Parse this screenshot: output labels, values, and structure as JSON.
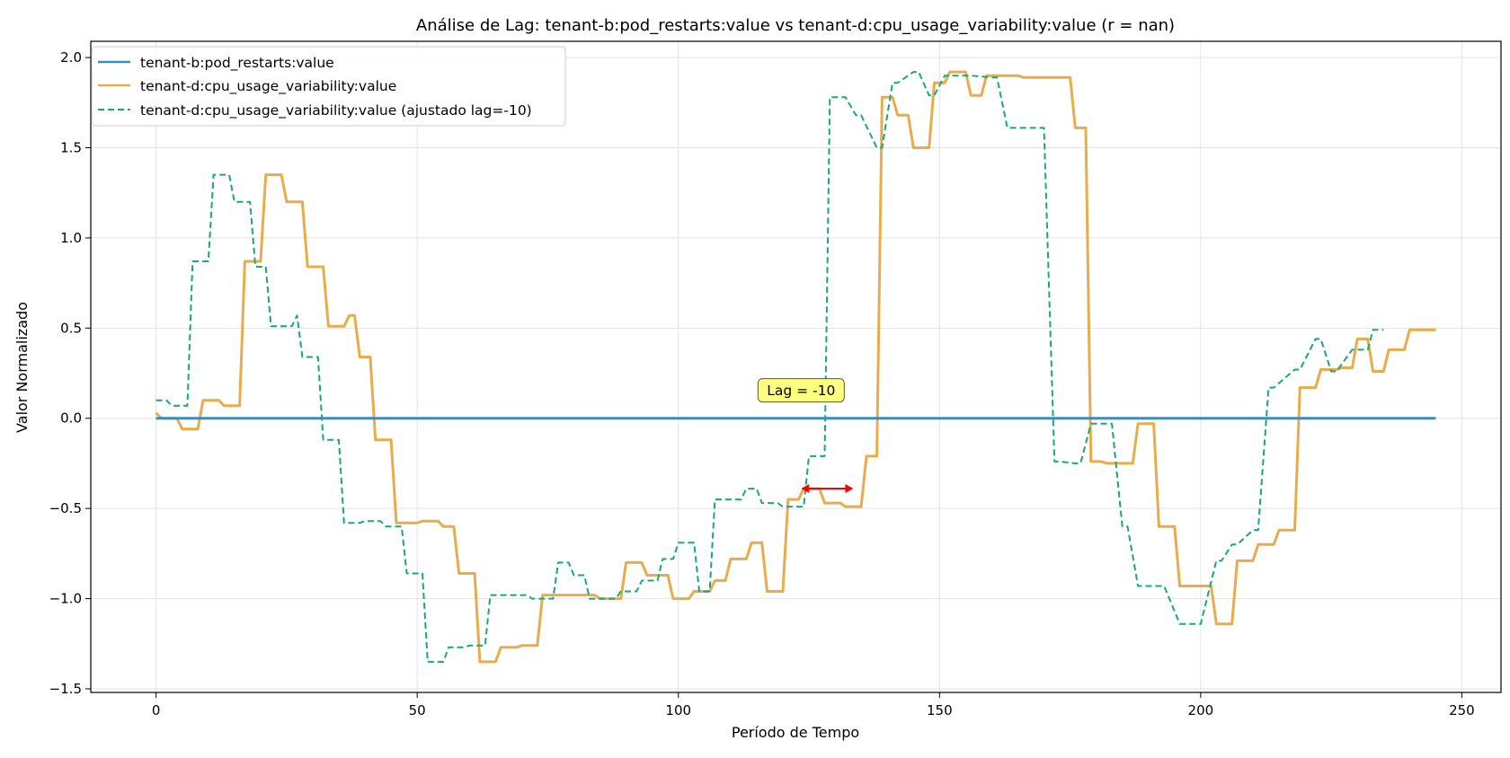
{
  "chart_data": {
    "type": "line",
    "title": "Análise de Lag: tenant-b:pod_restarts:value vs tenant-d:cpu_usage_variability:value (r = nan)",
    "xlabel": "Período de Tempo",
    "ylabel": "Valor Normalizado",
    "xlim": [
      -12.5,
      257.5
    ],
    "ylim": [
      -1.52,
      2.09
    ],
    "xticks": [
      0,
      50,
      100,
      150,
      200,
      250
    ],
    "yticks": [
      -1.5,
      -1.0,
      -0.5,
      0.0,
      0.5,
      1.0,
      1.5,
      2.0
    ],
    "xtick_labels": [
      "0",
      "50",
      "100",
      "150",
      "200",
      "250"
    ],
    "ytick_labels": [
      "−1.5",
      "−1.0",
      "−0.5",
      "0.0",
      "0.5",
      "1.0",
      "1.5",
      "2.0"
    ],
    "grid": true,
    "legend_position": "top-left",
    "series": [
      {
        "name": "tenant-b:pod_restarts:value",
        "color": "#3a8dc4",
        "style": "solid",
        "x": [
          0,
          245
        ],
        "y": [
          0.0,
          0.0
        ]
      },
      {
        "name": "tenant-d:cpu_usage_variability:value",
        "color": "#e9ac4a",
        "style": "solid",
        "x": [
          0,
          1,
          4,
          5,
          8,
          9,
          12,
          13,
          16,
          17,
          20,
          21,
          24,
          25,
          28,
          29,
          32,
          33,
          36,
          37,
          38,
          39,
          41,
          42,
          45,
          46,
          50,
          51,
          54,
          55,
          57,
          58,
          61,
          62,
          65,
          66,
          69,
          70,
          73,
          74,
          84,
          85,
          86,
          87,
          89,
          90,
          93,
          94,
          98,
          99,
          102,
          103,
          106,
          107,
          109,
          110,
          113,
          114,
          116,
          117,
          120,
          121,
          123,
          124,
          127,
          128,
          131,
          132,
          135,
          136,
          138,
          139,
          141,
          142,
          144,
          145,
          148,
          149,
          151,
          152,
          155,
          156,
          158,
          159,
          162,
          163,
          165,
          166,
          175,
          176,
          178,
          179,
          181,
          182,
          187,
          188,
          191,
          192,
          195,
          196,
          198,
          199,
          202,
          203,
          206,
          207,
          210,
          211,
          214,
          215,
          218,
          219,
          222,
          223,
          226,
          227,
          229,
          230,
          232,
          233,
          235,
          236,
          239,
          240,
          243,
          244,
          245
        ],
        "y": [
          0.03,
          0.0,
          0.0,
          -0.06,
          -0.06,
          0.1,
          0.1,
          0.07,
          0.07,
          0.87,
          0.87,
          1.35,
          1.35,
          1.2,
          1.2,
          0.84,
          0.84,
          0.51,
          0.51,
          0.57,
          0.57,
          0.34,
          0.34,
          -0.12,
          -0.12,
          -0.58,
          -0.58,
          -0.57,
          -0.57,
          -0.6,
          -0.6,
          -0.86,
          -0.86,
          -1.35,
          -1.35,
          -1.27,
          -1.27,
          -1.26,
          -1.26,
          -0.98,
          -0.98,
          -1.0,
          -1.0,
          -1.0,
          -1.0,
          -0.8,
          -0.8,
          -0.87,
          -0.87,
          -1.0,
          -1.0,
          -0.96,
          -0.96,
          -0.9,
          -0.9,
          -0.78,
          -0.78,
          -0.69,
          -0.69,
          -0.96,
          -0.96,
          -0.45,
          -0.45,
          -0.39,
          -0.39,
          -0.47,
          -0.47,
          -0.49,
          -0.49,
          -0.21,
          -0.21,
          1.78,
          1.78,
          1.68,
          1.68,
          1.5,
          1.5,
          1.86,
          1.86,
          1.92,
          1.92,
          1.79,
          1.79,
          1.9,
          1.9,
          1.9,
          1.9,
          1.89,
          1.89,
          1.61,
          1.61,
          -0.24,
          -0.24,
          -0.25,
          -0.25,
          -0.03,
          -0.03,
          -0.6,
          -0.6,
          -0.93,
          -0.93,
          -0.93,
          -0.93,
          -1.14,
          -1.14,
          -0.79,
          -0.79,
          -0.7,
          -0.7,
          -0.62,
          -0.62,
          0.17,
          0.17,
          0.27,
          0.27,
          0.28,
          0.28,
          0.44,
          0.44,
          0.26,
          0.26,
          0.38,
          0.38,
          0.49,
          0.49,
          0.49,
          0.49
        ]
      },
      {
        "name": "tenant-d:cpu_usage_variability:value (ajustado lag=-10)",
        "color": "#1aa876",
        "style": "dashed",
        "x": [
          0,
          2,
          3,
          5,
          6,
          7,
          9,
          10,
          11,
          13,
          14,
          15,
          17,
          18,
          19,
          21,
          22,
          25,
          26,
          27,
          28,
          31,
          32,
          35,
          36,
          39,
          40,
          43,
          44,
          47,
          48,
          51,
          52,
          55,
          56,
          59,
          60,
          63,
          64,
          66,
          67,
          71,
          72,
          74,
          75,
          76,
          77,
          79,
          80,
          82,
          83,
          85,
          86,
          88,
          89,
          92,
          93,
          96,
          97,
          99,
          100,
          103,
          104,
          106,
          107,
          108,
          109,
          112,
          113,
          115,
          116,
          119,
          120,
          123,
          124,
          125,
          126,
          128,
          129,
          131,
          132,
          134,
          135,
          138,
          139,
          141,
          142,
          145,
          146,
          148,
          149,
          151,
          152,
          155,
          156,
          160,
          161,
          163,
          164,
          166,
          167,
          169,
          170,
          172,
          173,
          176,
          177,
          179,
          180,
          182,
          183,
          185,
          186,
          188,
          189,
          192,
          193,
          196,
          197,
          199,
          200,
          203,
          204,
          206,
          207,
          210,
          211,
          213,
          214,
          218,
          219,
          222,
          223,
          225,
          226,
          229,
          230,
          232,
          233,
          235
        ],
        "y": [
          0.1,
          0.1,
          0.07,
          0.07,
          0.07,
          0.87,
          0.87,
          0.87,
          1.35,
          1.35,
          1.35,
          1.2,
          1.2,
          1.2,
          0.84,
          0.84,
          0.51,
          0.51,
          0.51,
          0.57,
          0.34,
          0.34,
          -0.12,
          -0.12,
          -0.58,
          -0.58,
          -0.57,
          -0.57,
          -0.6,
          -0.6,
          -0.86,
          -0.86,
          -1.35,
          -1.35,
          -1.27,
          -1.27,
          -1.26,
          -1.26,
          -0.98,
          -0.98,
          -0.98,
          -0.98,
          -1.0,
          -1.0,
          -1.0,
          -1.0,
          -0.8,
          -0.8,
          -0.87,
          -0.87,
          -1.0,
          -1.0,
          -1.0,
          -1.0,
          -0.96,
          -0.96,
          -0.9,
          -0.9,
          -0.78,
          -0.78,
          -0.69,
          -0.69,
          -0.96,
          -0.96,
          -0.45,
          -0.45,
          -0.45,
          -0.45,
          -0.39,
          -0.39,
          -0.47,
          -0.47,
          -0.49,
          -0.49,
          -0.49,
          -0.21,
          -0.21,
          -0.21,
          1.78,
          1.78,
          1.78,
          1.68,
          1.68,
          1.5,
          1.5,
          1.86,
          1.86,
          1.92,
          1.92,
          1.79,
          1.79,
          1.9,
          1.9,
          1.9,
          1.9,
          1.89,
          1.89,
          1.61,
          1.61,
          1.61,
          1.61,
          1.61,
          1.61,
          -0.24,
          -0.24,
          -0.25,
          -0.25,
          -0.03,
          -0.03,
          -0.03,
          -0.03,
          -0.6,
          -0.6,
          -0.93,
          -0.93,
          -0.93,
          -0.93,
          -1.14,
          -1.14,
          -1.14,
          -1.14,
          -0.79,
          -0.79,
          -0.7,
          -0.7,
          -0.62,
          -0.62,
          0.17,
          0.17,
          0.27,
          0.27,
          0.44,
          0.44,
          0.26,
          0.26,
          0.38,
          0.38,
          0.38,
          0.49,
          0.49
        ]
      }
    ],
    "annotation": {
      "text": "Lag = -10",
      "x": 123.5,
      "y": 0.155,
      "box_color": "#ffff80"
    },
    "lag_arrow": {
      "color": "#ff0000",
      "x_start": 123.5,
      "x_end": 133.5,
      "y": -0.39
    }
  }
}
